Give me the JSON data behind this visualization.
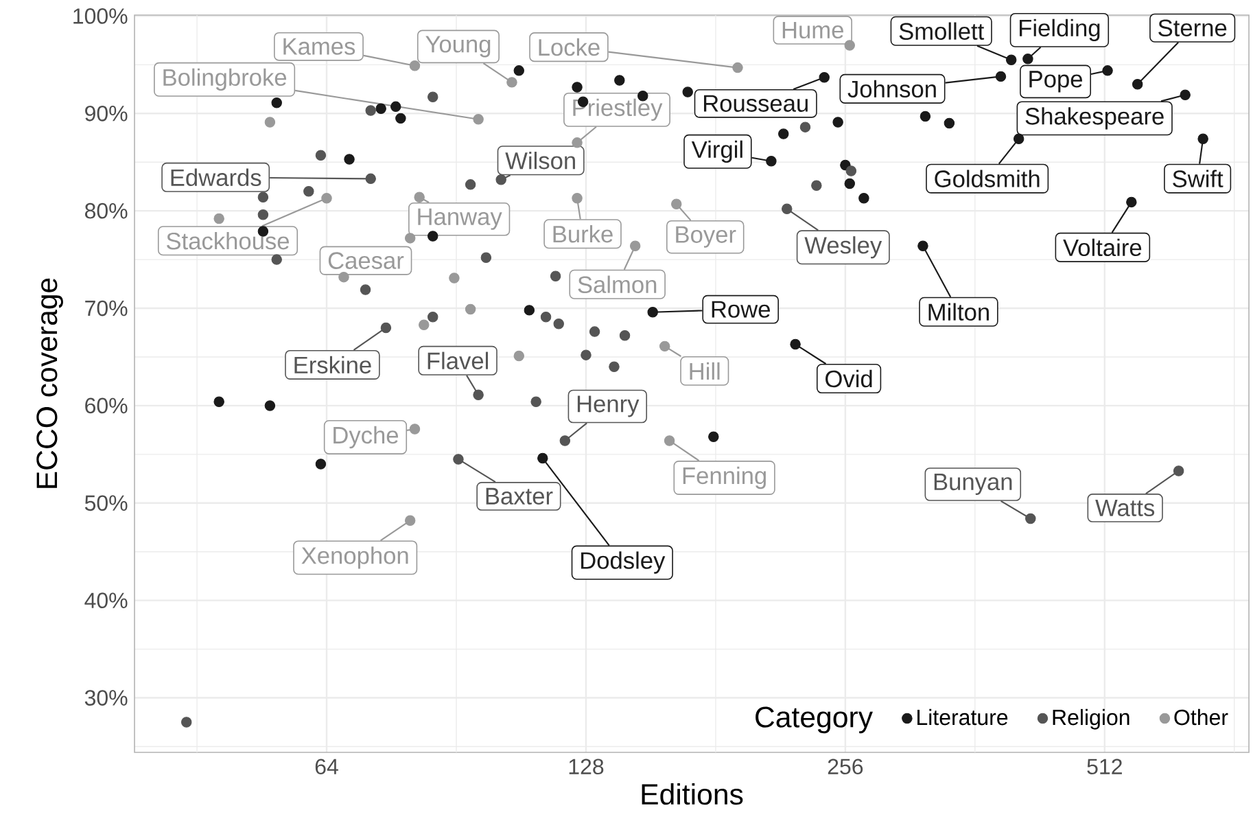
{
  "chart_data": {
    "type": "scatter",
    "xlabel": "Editions",
    "ylabel": "ECCO coverage",
    "legend_title": "Category",
    "log": "x",
    "grid": true,
    "legend": "bottom right",
    "xlim": [
      38.3,
      753
    ],
    "xticks": [
      64,
      128,
      256,
      512
    ],
    "ylim": [
      24.4,
      100.1
    ],
    "yticks": [
      {
        "value": 30,
        "label": "30%"
      },
      {
        "value": 40,
        "label": "40%"
      },
      {
        "value": 50,
        "label": "50%"
      },
      {
        "value": 60,
        "label": "60%"
      },
      {
        "value": 70,
        "label": "70%"
      },
      {
        "value": 80,
        "label": "80%"
      },
      {
        "value": 90,
        "label": "90%"
      },
      {
        "value": 100,
        "label": "100%"
      }
    ],
    "series": [
      {
        "name": "Literature",
        "color": "#1a1a1a",
        "x": [
          107,
          56,
          74,
          77,
          78,
          68,
          54,
          85,
          110,
          48,
          55,
          63,
          140,
          125,
          127,
          149,
          168,
          242,
          217,
          251,
          210,
          256,
          259,
          269,
          153,
          224,
          114,
          180,
          399,
          417,
          388,
          516,
          559,
          635,
          317,
          338,
          407,
          666,
          550,
          315
        ],
        "values": [
          94.4,
          91.1,
          90.5,
          90.7,
          89.5,
          85.3,
          77.9,
          77.4,
          69.8,
          60.4,
          60.0,
          54.0,
          93.4,
          92.7,
          91.2,
          91.8,
          92.2,
          93.7,
          87.9,
          89.1,
          85.1,
          84.7,
          82.8,
          81.3,
          69.6,
          66.3,
          54.6,
          56.8,
          95.5,
          95.6,
          93.8,
          94.4,
          93.0,
          91.9,
          89.7,
          89.0,
          87.4,
          87.4,
          80.9,
          76.4
        ]
      },
      {
        "name": "Religion",
        "color": "#555555",
        "x": [
          85,
          72,
          63,
          72,
          94,
          102,
          61,
          54,
          54,
          56,
          98,
          71,
          85,
          75,
          96,
          91,
          44,
          230,
          260,
          237,
          219,
          118,
          115,
          119,
          131,
          142,
          128,
          138,
          112,
          121,
          420,
          624
        ],
        "values": [
          91.7,
          90.3,
          85.7,
          83.3,
          82.7,
          83.2,
          82.0,
          81.4,
          79.6,
          75.0,
          75.2,
          71.9,
          69.1,
          68.0,
          61.1,
          54.5,
          27.5,
          88.6,
          84.1,
          82.6,
          80.2,
          73.3,
          69.1,
          68.4,
          67.6,
          67.2,
          65.2,
          64.0,
          60.4,
          56.4,
          48.4,
          53.3
        ]
      },
      {
        "name": "Other",
        "color": "#999999",
        "x": [
          81,
          105,
          55,
          96,
          64,
          48,
          82,
          80,
          67,
          90,
          94,
          83,
          107,
          81,
          80,
          192,
          125,
          125,
          163,
          146,
          158,
          160,
          259
        ],
        "values": [
          94.9,
          93.2,
          89.1,
          89.4,
          81.3,
          79.2,
          81.4,
          77.2,
          73.2,
          73.1,
          69.9,
          68.3,
          65.1,
          57.6,
          48.2,
          94.7,
          87.0,
          81.3,
          80.7,
          76.4,
          66.1,
          56.4,
          97.0
        ]
      }
    ],
    "annotations": [
      {
        "text": "Kames",
        "x": 81,
        "y": 94.9
      },
      {
        "text": "Young",
        "x": 105,
        "y": 93.2
      },
      {
        "text": "Locke",
        "x": 192,
        "y": 94.7
      },
      {
        "text": "Hume",
        "x": 259,
        "y": 97.0
      },
      {
        "text": "Rousseau",
        "x": 242,
        "y": 93.7
      },
      {
        "text": "Smollett",
        "x": 399,
        "y": 95.5
      },
      {
        "text": "Fielding",
        "x": 417,
        "y": 95.6
      },
      {
        "text": "Pope",
        "x": 516,
        "y": 94.4
      },
      {
        "text": "Sterne",
        "x": 559,
        "y": 93.0
      },
      {
        "text": "Shakespeare",
        "x": 635,
        "y": 91.9
      },
      {
        "text": "Johnson",
        "x": 388,
        "y": 93.8
      },
      {
        "text": "Virgil",
        "x": 210,
        "y": 85.1
      },
      {
        "text": "Boyer",
        "x": 163,
        "y": 80.7
      },
      {
        "text": "Goldsmith",
        "x": 407,
        "y": 87.4
      },
      {
        "text": "Swift",
        "x": 666,
        "y": 87.4
      },
      {
        "text": "Voltaire",
        "x": 550,
        "y": 80.9
      },
      {
        "text": "Milton",
        "x": 315,
        "y": 76.4
      },
      {
        "text": "Wesley",
        "x": 219,
        "y": 80.2
      },
      {
        "text": "Edwards",
        "x": 72,
        "y": 83.3
      },
      {
        "text": "Bolingbroke",
        "x": 96,
        "y": 89.4
      },
      {
        "text": "Wilson",
        "x": 102,
        "y": 83.2
      },
      {
        "text": "Priestley",
        "x": 125,
        "y": 87.0
      },
      {
        "text": "Hanway",
        "x": 82,
        "y": 81.4
      },
      {
        "text": "Burke",
        "x": 125,
        "y": 81.3
      },
      {
        "text": "Stackhouse",
        "x": 64,
        "y": 81.3
      },
      {
        "text": "Caesar",
        "x": 67,
        "y": 73.2
      },
      {
        "text": "Salmon",
        "x": 146,
        "y": 76.4
      },
      {
        "text": "Rowe",
        "x": 153,
        "y": 69.6
      },
      {
        "text": "Hill",
        "x": 158,
        "y": 66.1
      },
      {
        "text": "Ovid",
        "x": 224,
        "y": 66.3
      },
      {
        "text": "Erskine",
        "x": 75,
        "y": 68.0
      },
      {
        "text": "Flavel",
        "x": 96,
        "y": 61.1
      },
      {
        "text": "Henry",
        "x": 121,
        "y": 56.4
      },
      {
        "text": "Dyche",
        "x": 81,
        "y": 57.6
      },
      {
        "text": "Baxter",
        "x": 91,
        "y": 54.5
      },
      {
        "text": "Dodsley",
        "x": 114,
        "y": 54.6
      },
      {
        "text": "Fenning",
        "x": 160,
        "y": 56.4
      },
      {
        "text": "Xenophon",
        "x": 80,
        "y": 48.2
      },
      {
        "text": "Bunyan",
        "x": 420,
        "y": 48.4
      },
      {
        "text": "Watts",
        "x": 624,
        "y": 53.3
      }
    ]
  }
}
